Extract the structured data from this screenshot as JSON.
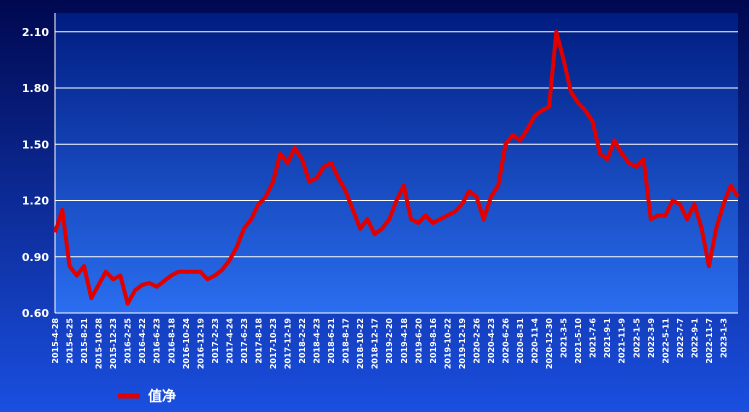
{
  "chart_data": {
    "type": "line",
    "categories": [
      "2015-4-28",
      null,
      "2015-6-25",
      null,
      "2015-8-21",
      null,
      "2015-10-28",
      null,
      "2015-12-23",
      null,
      "2016-2-25",
      null,
      "2016-4-22",
      null,
      "2016-6-23",
      null,
      "2016-8-18",
      null,
      "2016-10-24",
      null,
      "2016-12-19",
      null,
      "2017-2-23",
      null,
      "2017-4-24",
      null,
      "2017-6-23",
      null,
      "2017-8-18",
      null,
      "2017-10-23",
      null,
      "2017-12-19",
      null,
      "2018-2-22",
      null,
      "2018-4-23",
      null,
      "2018-6-21",
      null,
      "2018-8-17",
      null,
      "2018-10-22",
      null,
      "2018-12-17",
      null,
      "2019-2-20",
      null,
      "2019-4-18",
      null,
      "2019-6-20",
      null,
      "2019-8-16",
      null,
      "2019-10-22",
      null,
      "2019-12-19",
      null,
      "2020-2-26",
      null,
      "2020-4-23",
      null,
      "2020-6-26",
      null,
      "2020-8-31",
      null,
      "2020-11-4",
      null,
      "2020-12-30",
      null,
      "2021-3-5",
      null,
      "2021-5-10",
      null,
      "2021-7-6",
      null,
      "2021-9-1",
      null,
      "2021-11-9",
      null,
      "2022-1-5",
      null,
      "2022-3-9",
      null,
      "2022-5-11",
      null,
      "2022-7-7",
      null,
      "2022-9-1",
      null,
      "2022-11-7",
      null,
      "2023-1-3",
      null,
      null
    ],
    "series": [
      {
        "name": "值净",
        "color": "#e00000",
        "values": [
          1.03,
          1.15,
          0.85,
          0.8,
          0.85,
          0.68,
          0.75,
          0.82,
          0.78,
          0.8,
          0.65,
          0.72,
          0.75,
          0.76,
          0.74,
          0.77,
          0.8,
          0.82,
          0.82,
          0.82,
          0.82,
          0.78,
          0.8,
          0.83,
          0.88,
          0.95,
          1.05,
          1.1,
          1.18,
          1.22,
          1.3,
          1.45,
          1.4,
          1.48,
          1.42,
          1.3,
          1.32,
          1.38,
          1.4,
          1.32,
          1.25,
          1.15,
          1.05,
          1.1,
          1.02,
          1.05,
          1.1,
          1.2,
          1.28,
          1.1,
          1.08,
          1.12,
          1.08,
          1.1,
          1.12,
          1.14,
          1.18,
          1.25,
          1.22,
          1.1,
          1.22,
          1.28,
          1.5,
          1.55,
          1.52,
          1.58,
          1.65,
          1.68,
          1.7,
          2.1,
          1.95,
          1.78,
          1.72,
          1.68,
          1.62,
          1.45,
          1.42,
          1.52,
          1.45,
          1.4,
          1.38,
          1.42,
          1.1,
          1.12,
          1.12,
          1.2,
          1.18,
          1.1,
          1.18,
          1.05,
          0.85,
          1.05,
          1.18,
          1.28,
          1.22
        ]
      }
    ],
    "ylim": [
      0.6,
      2.2
    ],
    "yticks": [
      {
        "value": 0.6,
        "label": "0.60"
      },
      {
        "value": 0.9,
        "label": "0.90"
      },
      {
        "value": 1.2,
        "label": "1.20"
      },
      {
        "value": 1.5,
        "label": "1.50"
      },
      {
        "value": 1.8,
        "label": "1.80"
      },
      {
        "value": 2.1,
        "label": "2.10"
      }
    ],
    "grid": true
  }
}
